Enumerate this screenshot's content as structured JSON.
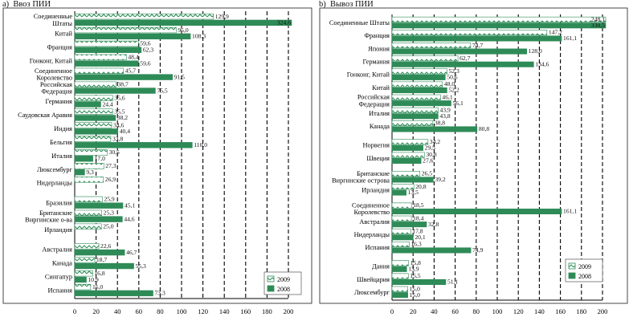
{
  "chart_data": [
    {
      "panel_label": "a)",
      "title": "Ввоз ПИИ",
      "type": "bar",
      "orientation": "horizontal",
      "xlim": [
        0,
        200
      ],
      "xticks": [
        0,
        20,
        40,
        60,
        80,
        100,
        120,
        140,
        160,
        180,
        200
      ],
      "grid": "vertical dashed",
      "legend_position": "bottom-right",
      "series": [
        {
          "name": "2009",
          "color": "#ffffff",
          "pattern": "zigzag"
        },
        {
          "name": "2008",
          "color": "#2e8b57"
        }
      ],
      "categories": [
        {
          "label": [
            "Соединенные",
            "Штаты"
          ],
          "values": [
            129.9,
            324.6
          ],
          "gap_before": false
        },
        {
          "label": [
            "Китай"
          ],
          "values": [
            95.0,
            108.3
          ],
          "gap_before": false
        },
        {
          "label": [
            "Франция"
          ],
          "values": [
            59.6,
            62.3
          ],
          "gap_before": false
        },
        {
          "label": [
            "Гонконг, Китай"
          ],
          "values": [
            48.4,
            59.6
          ],
          "gap_before": false
        },
        {
          "label": [
            "Соединенное",
            "Королевство"
          ],
          "values": [
            45.7,
            91.5
          ],
          "gap_before": false
        },
        {
          "label": [
            "Российская",
            "Федерация"
          ],
          "values": [
            38.7,
            75.5
          ],
          "gap_before": false
        },
        {
          "label": [
            "Германия"
          ],
          "values": [
            35.6,
            24.4
          ],
          "gap_before": false
        },
        {
          "label": [
            "Саудовская Аравия"
          ],
          "values": [
            35.5,
            38.2
          ],
          "gap_before": false
        },
        {
          "label": [
            "Индия"
          ],
          "values": [
            34.6,
            40.4
          ],
          "gap_before": false
        },
        {
          "label": [
            "Бельгия"
          ],
          "values": [
            33.8,
            110.0
          ],
          "gap_before": false
        },
        {
          "label": [
            "Италия"
          ],
          "values": [
            30.5,
            17.0
          ],
          "gap_before": false
        },
        {
          "label": [
            "Люксембург"
          ],
          "values": [
            27.3,
            9.3
          ],
          "gap_before": false
        },
        {
          "label": [
            "Нидерланды"
          ],
          "values": [
            26.9,
            null
          ],
          "gap_before": false
        },
        {
          "label": [
            "Бразилия"
          ],
          "values": [
            25.9,
            45.1
          ],
          "gap_before": true
        },
        {
          "label": [
            "Британские",
            "Виргинские о-ва"
          ],
          "values": [
            25.3,
            44.6
          ],
          "gap_before": false
        },
        {
          "label": [
            "Ирландия"
          ],
          "values": [
            25.0,
            null
          ],
          "gap_before": false
        },
        {
          "label": [
            "Австралия"
          ],
          "values": [
            22.6,
            46.7
          ],
          "gap_before": true
        },
        {
          "label": [
            "Канада"
          ],
          "values": [
            18.7,
            55.3
          ],
          "gap_before": false
        },
        {
          "label": [
            "Сингапур"
          ],
          "values": [
            16.8,
            10.9
          ],
          "gap_before": false
        },
        {
          "label": [
            "Испания"
          ],
          "values": [
            15.0,
            73.3
          ],
          "gap_before": false
        }
      ]
    },
    {
      "panel_label": "b)",
      "title": "Вывоз ПИИ",
      "type": "bar",
      "orientation": "horizontal",
      "xlim": [
        0,
        200
      ],
      "xticks": [
        0,
        20,
        40,
        60,
        80,
        100,
        120,
        140,
        160,
        180,
        200
      ],
      "grid": "vertical dashed",
      "legend_position": "bottom-right",
      "series": [
        {
          "name": "2009",
          "color": "#ffffff",
          "pattern": "zigzag"
        },
        {
          "name": "2008",
          "color": "#2e8b57"
        }
      ],
      "categories": [
        {
          "label": [
            "Соединенные Штаты"
          ],
          "values": [
            248.1,
            330.5
          ],
          "gap_before": false
        },
        {
          "label": [
            "Франция"
          ],
          "values": [
            147.2,
            161.1
          ],
          "gap_before": false
        },
        {
          "label": [
            "Япония"
          ],
          "values": [
            74.7,
            128.0
          ],
          "gap_before": false
        },
        {
          "label": [
            "Германия"
          ],
          "values": [
            62.7,
            134.6
          ],
          "gap_before": false
        },
        {
          "label": [
            "Гонконг, Китай"
          ],
          "values": [
            52.3,
            50.6
          ],
          "gap_before": false
        },
        {
          "label": [
            "Китай"
          ],
          "values": [
            48.0,
            52.2
          ],
          "gap_before": false
        },
        {
          "label": [
            "Российская",
            "Федерация"
          ],
          "values": [
            46.1,
            56.1
          ],
          "gap_before": false
        },
        {
          "label": [
            "Италия"
          ],
          "values": [
            43.9,
            43.8
          ],
          "gap_before": false
        },
        {
          "label": [
            "Канада"
          ],
          "values": [
            38.8,
            80.8
          ],
          "gap_before": false
        },
        {
          "label": [
            "Норвегия"
          ],
          "values": [
            34.2,
            29.5
          ],
          "gap_before": true
        },
        {
          "label": [
            "Швеция"
          ],
          "values": [
            30.8,
            27.6
          ],
          "gap_before": false
        },
        {
          "label": [
            "Британские",
            "Виргинские острова"
          ],
          "values": [
            26.5,
            39.2
          ],
          "gap_before": true
        },
        {
          "label": [
            "Ирландия"
          ],
          "values": [
            20.8,
            13.5
          ],
          "gap_before": false
        },
        {
          "label": [
            "Соединенное",
            "Королевство"
          ],
          "values": [
            18.5,
            161.1
          ],
          "gap_before": true
        },
        {
          "label": [
            "Австралия"
          ],
          "values": [
            18.4,
            32.8
          ],
          "gap_before": false
        },
        {
          "label": [
            "Нидерланды"
          ],
          "values": [
            17.8,
            20.1
          ],
          "gap_before": false
        },
        {
          "label": [
            "Испания"
          ],
          "values": [
            16.3,
            74.9
          ],
          "gap_before": false
        },
        {
          "label": [
            "Дания"
          ],
          "values": [
            15.8,
            13.9
          ],
          "gap_before": true
        },
        {
          "label": [
            "Швейцария"
          ],
          "values": [
            15.5,
            51.1
          ],
          "gap_before": false
        },
        {
          "label": [
            "Люксембург"
          ],
          "values": [
            15.0,
            15.0
          ],
          "gap_before": false
        }
      ]
    }
  ]
}
